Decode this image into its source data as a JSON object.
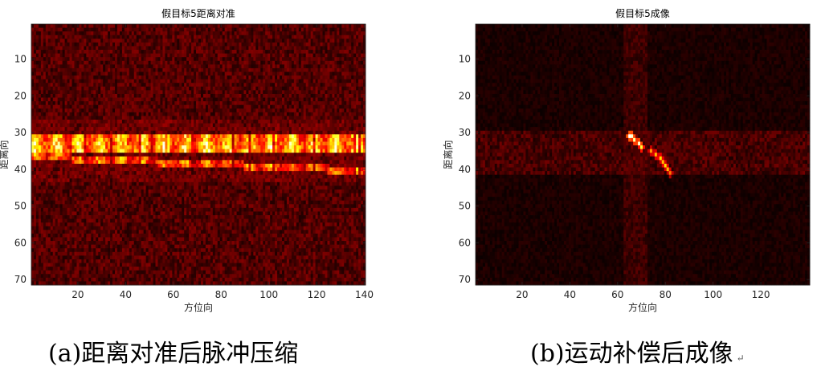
{
  "chart_data": [
    {
      "type": "heatmap",
      "title": "假目标5距离对准",
      "xlabel": "方位向",
      "ylabel": "距离向",
      "x_ticks": [
        20,
        40,
        60,
        80,
        100,
        120,
        140
      ],
      "y_ticks": [
        10,
        20,
        30,
        40,
        50,
        60,
        70
      ],
      "xlim": [
        0.5,
        140.5
      ],
      "ylim": [
        0.5,
        71.5
      ],
      "y_reversed": true,
      "colormap": "hot",
      "n_cols": 140,
      "n_rows": 71,
      "bands": [
        {
          "row_start": 31,
          "row_end": 32,
          "col_start": 1,
          "col_end": 140,
          "intensity": 0.9,
          "slope": 0.0
        },
        {
          "row_start": 33,
          "row_end": 35,
          "col_start": 1,
          "col_end": 140,
          "intensity": 1.0,
          "slope": 0.0
        },
        {
          "row_start": 36,
          "row_end": 37,
          "col_start": 1,
          "col_end": 140,
          "intensity": 0.75,
          "slope": 0.028
        }
      ],
      "background_intensity": 0.12
    },
    {
      "type": "heatmap",
      "title": "假目标5成像",
      "xlabel": "方位向",
      "ylabel": "距离向",
      "x_ticks": [
        20,
        40,
        60,
        80,
        100,
        120
      ],
      "y_ticks": [
        10,
        20,
        30,
        40,
        50,
        60,
        70
      ],
      "xlim": [
        0.5,
        140.5
      ],
      "ylim": [
        0.5,
        71.5
      ],
      "y_reversed": true,
      "colormap": "hot",
      "n_cols": 140,
      "n_rows": 71,
      "target_points": [
        {
          "col": 65,
          "row": 31,
          "intensity": 1.0
        },
        {
          "col": 66,
          "row": 31,
          "intensity": 0.95
        },
        {
          "col": 67,
          "row": 32,
          "intensity": 0.9
        },
        {
          "col": 69,
          "row": 33,
          "intensity": 0.95
        },
        {
          "col": 70,
          "row": 34,
          "intensity": 0.8
        },
        {
          "col": 74,
          "row": 35,
          "intensity": 0.6
        },
        {
          "col": 76,
          "row": 36,
          "intensity": 0.65
        },
        {
          "col": 78,
          "row": 37,
          "intensity": 0.7
        },
        {
          "col": 79,
          "row": 38,
          "intensity": 0.65
        },
        {
          "col": 80,
          "row": 39,
          "intensity": 0.7
        },
        {
          "col": 81,
          "row": 40,
          "intensity": 0.65
        },
        {
          "col": 82,
          "row": 41,
          "intensity": 0.55
        }
      ],
      "clutter_band": {
        "row_start": 30,
        "row_end": 41,
        "intensity": 0.13
      },
      "background_intensity": 0.05
    }
  ],
  "captions": {
    "a": "(a)距离对准后脉冲压缩",
    "b": "(b)运动补偿后成像",
    "return_mark": "↵"
  }
}
